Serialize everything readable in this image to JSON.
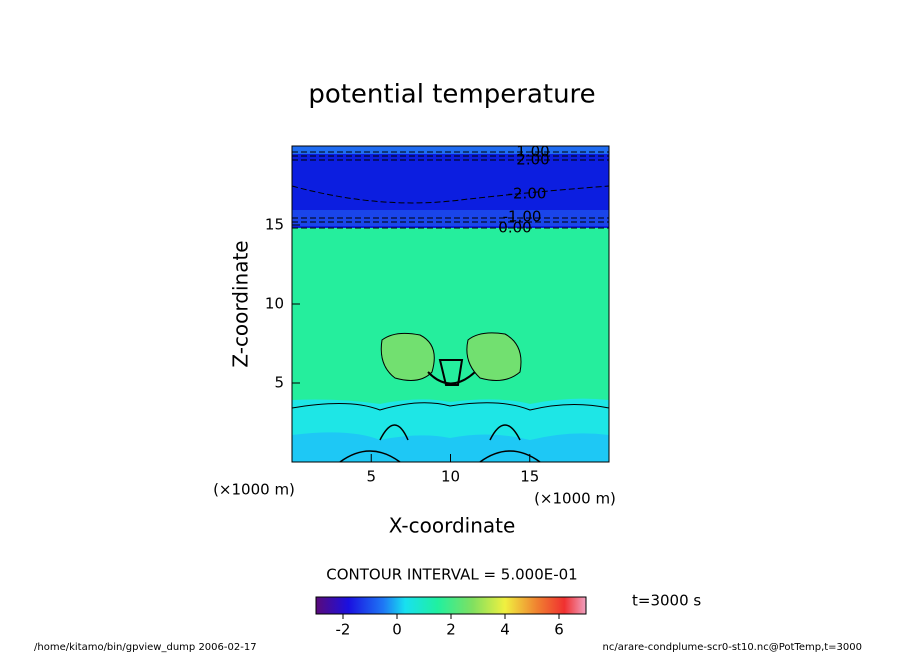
{
  "chart_data": {
    "type": "contour",
    "title": "potential temperature",
    "x_label": "X-coordinate",
    "y_label": "Z-coordinate",
    "x_unit": "(×1000 m)",
    "y_unit": "(×1000 m)",
    "xlim": [
      0,
      20
    ],
    "ylim": [
      0,
      20
    ],
    "xticks": [
      5,
      10,
      15
    ],
    "yticks": [
      5,
      10,
      15
    ],
    "contour_labels": [
      {
        "value": 1,
        "label": "1.00"
      },
      {
        "value": 2,
        "label": "2.00"
      },
      {
        "value": -2,
        "label": "-2.00"
      },
      {
        "value": -1,
        "label": "-1.00"
      },
      {
        "value": 0,
        "label": "0.00"
      }
    ],
    "contour_interval": "CONTOUR INTERVAL = 5.000E-01",
    "time": "t=3000 s",
    "colorbar": {
      "lim": [
        -3,
        7
      ],
      "ticks": [
        -2,
        0,
        2,
        4,
        6
      ]
    },
    "footer_left": "/home/kitamo/bin/gpview_dump  2006-02-17",
    "footer_right": "nc/arare-condplume-scr0-st10.nc@PotTemp,t=3000"
  }
}
